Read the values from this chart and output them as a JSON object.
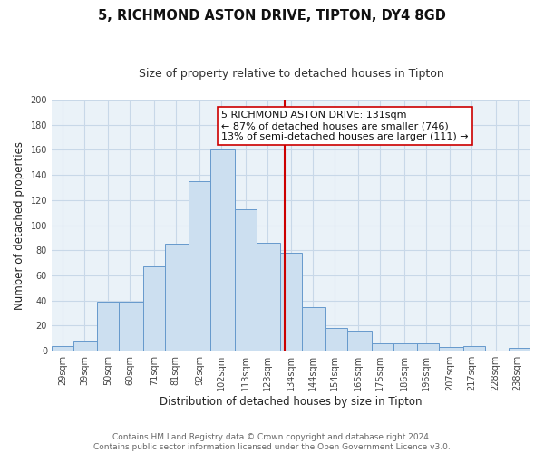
{
  "title": "5, RICHMOND ASTON DRIVE, TIPTON, DY4 8GD",
  "subtitle": "Size of property relative to detached houses in Tipton",
  "xlabel": "Distribution of detached houses by size in Tipton",
  "ylabel": "Number of detached properties",
  "bin_edges": [
    24,
    34,
    45,
    55,
    66,
    76,
    87,
    97,
    108,
    118,
    129,
    139,
    150,
    160,
    171,
    181,
    192,
    202,
    213,
    223,
    234,
    244
  ],
  "bar_heights": [
    4,
    8,
    39,
    39,
    67,
    85,
    135,
    160,
    113,
    86,
    78,
    35,
    18,
    16,
    6,
    6,
    6,
    3,
    4,
    0,
    2
  ],
  "bar_color": "#ccdff0",
  "bar_edge_color": "#6699cc",
  "vline_x": 131,
  "vline_color": "#cc0000",
  "annotation_text_line1": "5 RICHMOND ASTON DRIVE: 131sqm",
  "annotation_text_line2": "← 87% of detached houses are smaller (746)",
  "annotation_text_line3": "13% of semi-detached houses are larger (111) →",
  "xlim": [
    24,
    244
  ],
  "ylim": [
    0,
    200
  ],
  "yticks": [
    0,
    20,
    40,
    60,
    80,
    100,
    120,
    140,
    160,
    180,
    200
  ],
  "xtick_labels": [
    "29sqm",
    "39sqm",
    "50sqm",
    "60sqm",
    "71sqm",
    "81sqm",
    "92sqm",
    "102sqm",
    "113sqm",
    "123sqm",
    "134sqm",
    "144sqm",
    "154sqm",
    "165sqm",
    "175sqm",
    "186sqm",
    "196sqm",
    "207sqm",
    "217sqm",
    "228sqm",
    "238sqm"
  ],
  "xtick_positions": [
    29,
    39,
    50,
    60,
    71,
    81,
    92,
    102,
    113,
    123,
    134,
    144,
    154,
    165,
    175,
    186,
    196,
    207,
    217,
    228,
    238
  ],
  "footer_text": "Contains HM Land Registry data © Crown copyright and database right 2024.\nContains public sector information licensed under the Open Government Licence v3.0.",
  "grid_color": "#c8d8e8",
  "plot_bg_color": "#eaf2f8",
  "fig_bg_color": "#ffffff",
  "title_fontsize": 10.5,
  "subtitle_fontsize": 9,
  "axis_label_fontsize": 8.5,
  "tick_fontsize": 7,
  "annotation_fontsize": 8,
  "footer_fontsize": 6.5
}
